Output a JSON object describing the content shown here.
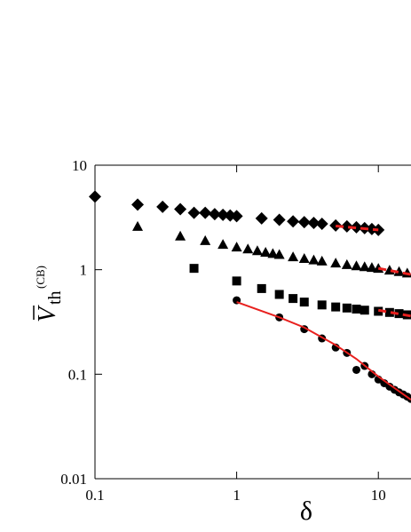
{
  "chart_data": {
    "type": "scatter",
    "xscale": "log",
    "yscale": "log",
    "xlim": [
      0.1,
      17
    ],
    "ylim": [
      0.01,
      10
    ],
    "xticks": [
      0.1,
      1,
      10
    ],
    "yticks": [
      0.01,
      0.1,
      1,
      10
    ],
    "xlabel": "δ",
    "ylabel": {
      "symbol": "V",
      "subscript": "th",
      "superscript": "(CB)"
    },
    "series": [
      {
        "type": "scatter",
        "marker": "diamond",
        "color": "#000000",
        "x": [
          0.1,
          0.2,
          0.3,
          0.4,
          0.5,
          0.6,
          0.7,
          0.8,
          0.9,
          1,
          1.5,
          2,
          2.5,
          3,
          3.5,
          4,
          5,
          6,
          7,
          8,
          9,
          10
        ],
        "values": [
          5.0,
          4.2,
          4.0,
          3.8,
          3.5,
          3.5,
          3.4,
          3.35,
          3.3,
          3.25,
          3.1,
          3.0,
          2.9,
          2.85,
          2.8,
          2.75,
          2.65,
          2.6,
          2.55,
          2.5,
          2.45,
          2.4
        ]
      },
      {
        "type": "scatter",
        "marker": "triangle",
        "color": "#000000",
        "x": [
          0.2,
          0.4,
          0.6,
          0.8,
          1,
          1.2,
          1.4,
          1.6,
          1.8,
          2,
          2.5,
          3,
          3.5,
          4,
          5,
          6,
          7,
          8,
          9,
          10,
          12,
          14,
          16
        ],
        "values": [
          2.6,
          2.1,
          1.9,
          1.75,
          1.65,
          1.58,
          1.52,
          1.47,
          1.43,
          1.4,
          1.33,
          1.28,
          1.24,
          1.21,
          1.16,
          1.12,
          1.09,
          1.07,
          1.05,
          1.03,
          0.99,
          0.96,
          0.93
        ]
      },
      {
        "type": "scatter",
        "marker": "square",
        "color": "#000000",
        "x": [
          0.5,
          1,
          1.5,
          2,
          2.5,
          3,
          4,
          5,
          6,
          7,
          8,
          10,
          12,
          14,
          16
        ],
        "values": [
          1.03,
          0.78,
          0.66,
          0.58,
          0.53,
          0.49,
          0.46,
          0.44,
          0.43,
          0.42,
          0.41,
          0.4,
          0.39,
          0.38,
          0.37
        ]
      },
      {
        "type": "scatter",
        "marker": "circle",
        "color": "#000000",
        "x": [
          1,
          2,
          3,
          4,
          5,
          6,
          7,
          8,
          9,
          10,
          11,
          12,
          13,
          14,
          15,
          16,
          17
        ],
        "values": [
          0.51,
          0.35,
          0.27,
          0.22,
          0.18,
          0.16,
          0.11,
          0.12,
          0.1,
          0.089,
          0.082,
          0.076,
          0.071,
          0.067,
          0.064,
          0.061,
          0.058
        ]
      },
      {
        "type": "line",
        "style": "solid",
        "color": "#e8201e",
        "x": [
          1,
          2,
          3,
          5,
          7,
          10,
          17
        ],
        "values": [
          0.49,
          0.35,
          0.28,
          0.19,
          0.14,
          0.095,
          0.057
        ]
      },
      {
        "type": "line",
        "style": "dashed",
        "color": "#e8201e",
        "x": [
          10,
          17
        ],
        "values": [
          0.41,
          0.36
        ]
      },
      {
        "type": "line",
        "style": "dashed",
        "color": "#e8201e",
        "x": [
          10,
          17
        ],
        "values": [
          1.03,
          0.9
        ]
      },
      {
        "type": "line",
        "style": "dashed",
        "color": "#e8201e",
        "x": [
          5,
          10
        ],
        "values": [
          2.62,
          2.4
        ]
      }
    ]
  }
}
